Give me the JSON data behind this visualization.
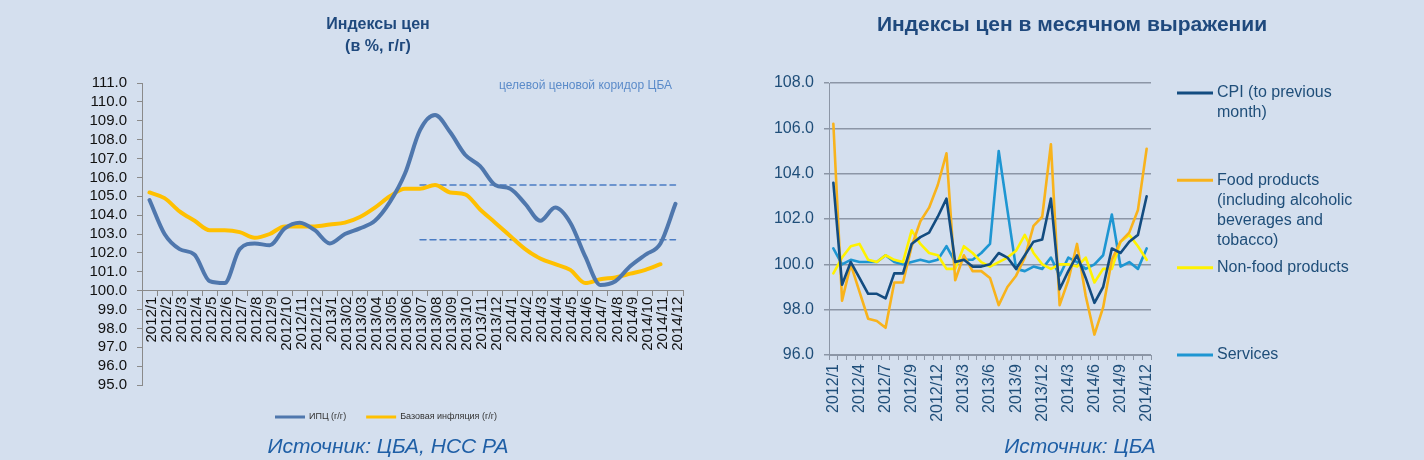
{
  "chart_data": [
    {
      "type": "line",
      "title": "Индексы цен\n(в %, г/г)",
      "categories": [
        "2012/1",
        "2012/2",
        "2012/3",
        "2012/4",
        "2012/5",
        "2012/6",
        "2012/7",
        "2012/8",
        "2012/9",
        "2012/10",
        "2012/11",
        "2012/12",
        "2013/1",
        "2013/02",
        "2013/03",
        "2013/04",
        "2013/05",
        "2013/06",
        "2013/07",
        "2013/08",
        "2013/09",
        "2013/10",
        "2013/11",
        "2013/12",
        "2014/1",
        "2014/2",
        "2014/3",
        "2014/4",
        "2014/5",
        "2014/6",
        "2014/7",
        "2014/8",
        "2014/9",
        "2014/10",
        "2014/11",
        "2014/12"
      ],
      "series": [
        {
          "name": "ИПЦ (г/г)",
          "color": "#4f77ad",
          "values": [
            104.8,
            103.0,
            102.2,
            101.9,
            100.5,
            100.4,
            102.2,
            102.5,
            102.4,
            103.3,
            103.6,
            103.2,
            102.5,
            103.0,
            103.3,
            103.7,
            104.7,
            106.2,
            108.5,
            109.3,
            108.4,
            107.2,
            106.6,
            105.6,
            105.4,
            104.6,
            103.7,
            104.4,
            103.6,
            101.8,
            100.3,
            100.5,
            101.3,
            101.9,
            102.5,
            104.6
          ]
        },
        {
          "name": "Базовая инфляция (г/г)",
          "color": "#ffc000",
          "values": [
            105.2,
            104.9,
            104.2,
            103.7,
            103.2,
            103.2,
            103.1,
            102.8,
            103.0,
            103.4,
            103.4,
            103.4,
            103.5,
            103.6,
            103.9,
            104.4,
            105.0,
            105.4,
            105.4,
            105.6,
            105.2,
            105.1,
            104.3,
            103.6,
            102.9,
            102.2,
            101.7,
            101.4,
            101.1,
            100.4,
            100.6,
            100.7,
            100.9,
            101.1,
            101.4,
            null
          ]
        },
        {
          "color": "#4a7cc4",
          "line_style": "dashed",
          "values": [
            null,
            null,
            null,
            null,
            null,
            null,
            null,
            null,
            null,
            null,
            null,
            null,
            null,
            null,
            null,
            null,
            null,
            null,
            105.6,
            105.6,
            105.6,
            105.6,
            105.6,
            105.6,
            105.6,
            105.6,
            105.6,
            105.6,
            105.6,
            105.6,
            105.6,
            105.6,
            105.6,
            105.6,
            105.6,
            105.6
          ]
        },
        {
          "color": "#4a7cc4",
          "line_style": "dashed",
          "values": [
            null,
            null,
            null,
            null,
            null,
            null,
            null,
            null,
            null,
            null,
            null,
            null,
            null,
            null,
            null,
            null,
            null,
            null,
            102.7,
            102.7,
            102.7,
            102.7,
            102.7,
            102.7,
            102.7,
            102.7,
            102.7,
            102.7,
            102.7,
            102.7,
            102.7,
            102.7,
            102.7,
            102.7,
            102.7,
            102.7
          ]
        }
      ],
      "ylim": [
        95,
        111
      ],
      "yticks": [
        {
          "value": 95,
          "label": "95.0"
        },
        {
          "value": 96,
          "label": "96.0"
        },
        {
          "value": 97,
          "label": "97.0"
        },
        {
          "value": 98,
          "label": "98.0"
        },
        {
          "value": 99,
          "label": "99.0"
        },
        {
          "value": 100,
          "label": "100.0"
        },
        {
          "value": 101,
          "label": "101.0"
        },
        {
          "value": 102,
          "label": "102.0"
        },
        {
          "value": 103,
          "label": "103.0"
        },
        {
          "value": 104,
          "label": "104.0"
        },
        {
          "value": 105,
          "label": "105.0"
        },
        {
          "value": 106,
          "label": "106.0"
        },
        {
          "value": 107,
          "label": "107.0"
        },
        {
          "value": 108,
          "label": "108.0"
        },
        {
          "value": 109,
          "label": "109.0"
        },
        {
          "value": 110,
          "label": "110.0"
        },
        {
          "value": 111,
          "label": "111.0"
        }
      ],
      "grid": false,
      "legend": "bottom",
      "marker": "none",
      "annotations": [
        "целевой ценовой коридор ЦБА",
        "Источник: ЦБА, НСС РА"
      ]
    },
    {
      "type": "line",
      "title": "Индексы цен в месячном выражении",
      "categories": [
        "2012/1",
        null,
        null,
        "2012/4",
        null,
        null,
        "2012/7",
        null,
        null,
        "2012/9",
        null,
        null,
        "2012/12",
        null,
        null,
        "2013/3",
        null,
        null,
        "2013/6",
        null,
        null,
        "2013/9",
        null,
        null,
        "2013/12",
        null,
        null,
        "2014/3",
        null,
        null,
        "2014/6",
        null,
        null,
        "2014/9",
        null,
        null,
        "2014/12"
      ],
      "series": [
        {
          "name": "CPI (to previous month)",
          "color": "#134c80",
          "values": [
            103.6,
            99.1,
            100.1,
            99.4,
            98.7,
            98.7,
            98.5,
            99.6,
            99.6,
            100.9,
            101.2,
            101.4,
            102.1,
            102.9,
            100.1,
            100.2,
            99.9,
            99.9,
            100.0,
            100.5,
            100.3,
            99.8,
            100.4,
            101.0,
            101.1,
            102.9,
            98.9,
            99.7,
            100.4,
            99.4,
            98.3,
            99.0,
            100.7,
            100.5,
            101.0,
            101.3,
            103.0
          ]
        },
        {
          "name": "Food products (including alcoholic beverages and tobacco)",
          "color": "#f8b31c",
          "values": [
            106.2,
            98.4,
            100.0,
            98.8,
            97.6,
            97.5,
            97.2,
            99.2,
            99.2,
            100.8,
            101.9,
            102.5,
            103.5,
            104.9,
            99.3,
            100.4,
            99.7,
            99.7,
            99.4,
            98.2,
            99.0,
            99.5,
            100.3,
            101.7,
            102.1,
            105.3,
            98.2,
            99.3,
            100.9,
            98.6,
            96.9,
            98.1,
            100.2,
            101.0,
            101.4,
            102.4,
            105.1
          ]
        },
        {
          "name": "Non-food products",
          "color": "#fff200",
          "values": [
            99.6,
            100.3,
            100.8,
            100.9,
            100.2,
            100.1,
            100.4,
            100.2,
            100.1,
            101.5,
            100.9,
            100.5,
            100.4,
            99.8,
            99.8,
            100.8,
            100.5,
            100.1,
            99.9,
            100.1,
            100.3,
            100.6,
            101.3,
            100.5,
            100.0,
            99.8,
            100.0,
            100.0,
            99.9,
            100.3,
            99.2,
            99.8,
            99.8,
            101.0,
            101.3,
            100.8,
            100.2
          ]
        },
        {
          "name": "Services",
          "color": "#1e96d2",
          "values": [
            100.7,
            100.0,
            100.2,
            100.1,
            100.1,
            100.1,
            100.4,
            100.1,
            100.0,
            100.1,
            100.2,
            100.1,
            100.2,
            100.8,
            100.1,
            100.2,
            100.2,
            100.5,
            100.9,
            105.0,
            102.4,
            99.8,
            99.7,
            99.9,
            99.8,
            100.3,
            99.5,
            100.3,
            100.1,
            99.8,
            100.0,
            100.4,
            102.2,
            99.9,
            100.1,
            99.8,
            100.7
          ]
        }
      ],
      "ylim": [
        96,
        108
      ],
      "yticks": [
        {
          "value": 96,
          "label": "96.0"
        },
        {
          "value": 98,
          "label": "98.0"
        },
        {
          "value": 100,
          "label": "100.0"
        },
        {
          "value": 102,
          "label": "102.0"
        },
        {
          "value": 104,
          "label": "104.0"
        },
        {
          "value": 106,
          "label": "106.0"
        },
        {
          "value": 108,
          "label": "108.0"
        }
      ],
      "grid": "y",
      "legend": "right",
      "marker": "none",
      "annotations": [
        "Источник: ЦБА"
      ]
    }
  ]
}
